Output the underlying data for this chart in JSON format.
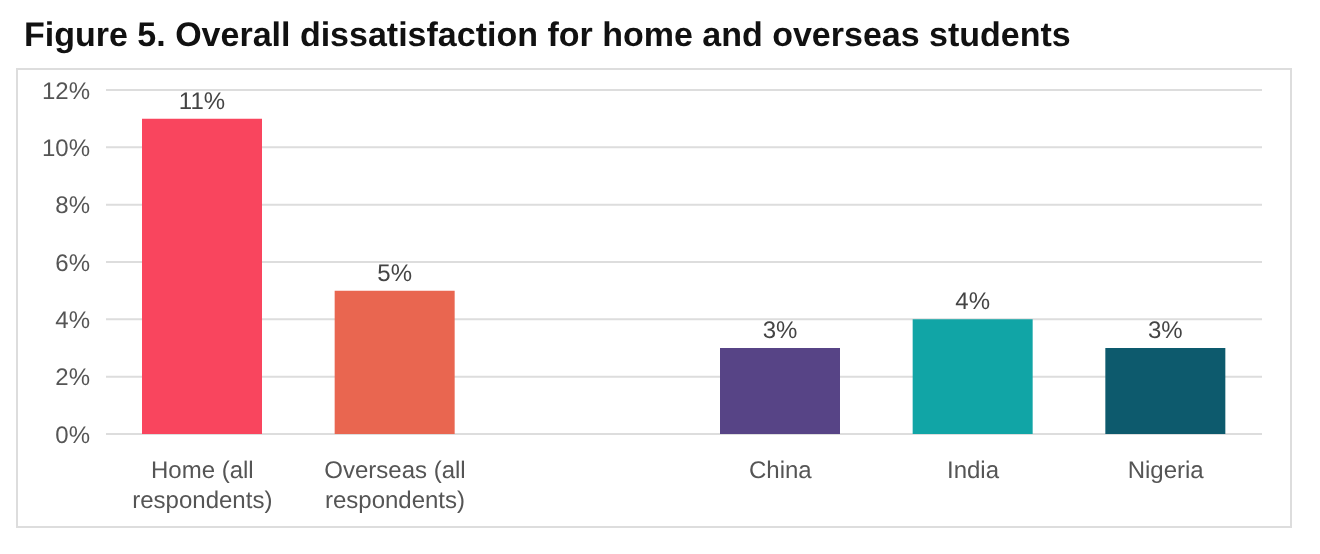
{
  "chart_data": {
    "type": "bar",
    "title": "Figure 5. Overall dissatisfaction for home and overseas students",
    "categories": [
      "Home (all respondents)",
      "Overseas (all respondents)",
      null,
      "China",
      "India",
      "Nigeria"
    ],
    "values": [
      11,
      5,
      null,
      3,
      4,
      3
    ],
    "colors": [
      "#f9455e",
      "#e96650",
      "#cccccc",
      "#574486",
      "#11a5a6",
      "#0d5a6d"
    ],
    "value_labels": [
      "11%",
      "5%",
      null,
      "3%",
      "4%",
      "3%"
    ],
    "ylim": [
      0,
      12
    ],
    "yticks": [
      {
        "value": 0,
        "label": "0%"
      },
      {
        "value": 2,
        "label": "2%"
      },
      {
        "value": 4,
        "label": "4%"
      },
      {
        "value": 6,
        "label": "6%"
      },
      {
        "value": 8,
        "label": "8%"
      },
      {
        "value": 10,
        "label": "10%"
      },
      {
        "value": 12,
        "label": "12%"
      }
    ],
    "grid": "y"
  }
}
